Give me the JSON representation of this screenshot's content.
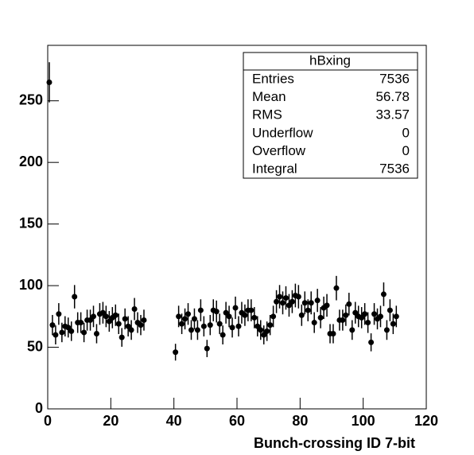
{
  "chart_data": {
    "type": "scatter",
    "x_label": "Bunch-crossing ID 7-bit",
    "xlim": [
      0,
      120
    ],
    "ylim": [
      0,
      295
    ],
    "xticks": [
      0,
      20,
      40,
      60,
      80,
      100,
      120
    ],
    "yticks": [
      0,
      50,
      100,
      150,
      200,
      250
    ],
    "color": "#000000",
    "x": [
      0.5,
      1.5,
      2.5,
      3.5,
      4.5,
      5.5,
      6.5,
      7.5,
      8.5,
      9.5,
      10.5,
      11.5,
      12.5,
      13.5,
      14.5,
      15.5,
      16.5,
      17.5,
      18.5,
      19.5,
      20.5,
      21.5,
      22.5,
      23.5,
      24.5,
      25.5,
      26.5,
      27.5,
      28.5,
      29.5,
      30.5,
      31.5,
      32.5,
      33.5,
      34.5,
      35.5,
      36.5,
      37.5,
      38.5,
      39.5,
      40.5,
      41.5,
      42.5,
      43.5,
      44.5,
      45.5,
      46.5,
      47.5,
      48.5,
      49.5,
      50.5,
      51.5,
      52.5,
      53.5,
      54.5,
      55.5,
      56.5,
      57.5,
      58.5,
      59.5,
      60.5,
      61.5,
      62.5,
      63.5,
      64.5,
      65.5,
      66.5,
      67.5,
      68.5,
      69.5,
      70.5,
      71.5,
      72.5,
      73.5,
      74.5,
      75.5,
      76.5,
      77.5,
      78.5,
      79.5,
      80.5,
      81.5,
      82.5,
      83.5,
      84.5,
      85.5,
      86.5,
      87.5,
      88.5,
      89.5,
      90.5,
      91.5,
      92.5,
      93.5,
      94.5,
      95.5,
      96.5,
      97.5,
      98.5,
      99.5,
      100.5,
      101.5,
      102.5,
      103.5,
      104.5,
      105.5,
      106.5,
      107.5,
      108.5,
      109.5,
      110.5
    ],
    "values": [
      265,
      68,
      60,
      77,
      62,
      67,
      66,
      63,
      91,
      70,
      70,
      62,
      72,
      72,
      75,
      61,
      77,
      78,
      75,
      71,
      74,
      76,
      69,
      58,
      73,
      67,
      64,
      81,
      70,
      68,
      72,
      null,
      null,
      null,
      null,
      null,
      null,
      null,
      null,
      null,
      46,
      75,
      69,
      73,
      77,
      64,
      73,
      64,
      80,
      67,
      49,
      68,
      80,
      79,
      69,
      60,
      78,
      75,
      66,
      82,
      67,
      78,
      76,
      80,
      80,
      74,
      67,
      64,
      60,
      63,
      68,
      75,
      87,
      91,
      86,
      90,
      84,
      87,
      92,
      91,
      76,
      86,
      80,
      86,
      70,
      88,
      74,
      82,
      84,
      61,
      61,
      98,
      72,
      72,
      76,
      85,
      64,
      78,
      75,
      74,
      77,
      70,
      54,
      77,
      73,
      75,
      93,
      64,
      80,
      69,
      75
    ],
    "errors": [
      16.3,
      8.2,
      7.7,
      8.8,
      7.9,
      8.2,
      8.1,
      7.9,
      9.5,
      8.4,
      8.4,
      7.9,
      8.5,
      8.5,
      8.7,
      7.8,
      8.8,
      8.8,
      8.7,
      8.4,
      8.6,
      8.7,
      8.3,
      7.6,
      8.5,
      8.2,
      8,
      9,
      8.4,
      8.2,
      8.5,
      null,
      null,
      null,
      null,
      null,
      null,
      null,
      null,
      null,
      6.8,
      8.7,
      8.3,
      8.5,
      8.8,
      8,
      8.5,
      8,
      8.9,
      8.2,
      7,
      8.2,
      8.9,
      8.9,
      8.3,
      7.7,
      8.8,
      8.7,
      8.1,
      9.1,
      8.2,
      8.8,
      8.7,
      8.9,
      8.9,
      8.6,
      8.2,
      8,
      7.7,
      7.9,
      8.2,
      8.7,
      9.3,
      9.5,
      9.3,
      9.5,
      9.2,
      9.3,
      9.6,
      9.5,
      8.7,
      9.3,
      8.9,
      9.3,
      8.4,
      9.4,
      8.6,
      9.1,
      9.2,
      7.8,
      7.8,
      9.9,
      8.5,
      8.5,
      8.7,
      9.2,
      8,
      8.8,
      8.7,
      8.6,
      8.8,
      8.4,
      7.3,
      8.8,
      8.5,
      8.7,
      9.6,
      8,
      8.9,
      8.3,
      8.7
    ],
    "stats": {
      "title": "hBxing",
      "rows": [
        [
          "Entries",
          7536
        ],
        [
          "Mean",
          56.78
        ],
        [
          "RMS",
          33.57
        ],
        [
          "Underflow",
          0
        ],
        [
          "Overflow",
          0
        ],
        [
          "Integral",
          7536
        ]
      ]
    }
  }
}
